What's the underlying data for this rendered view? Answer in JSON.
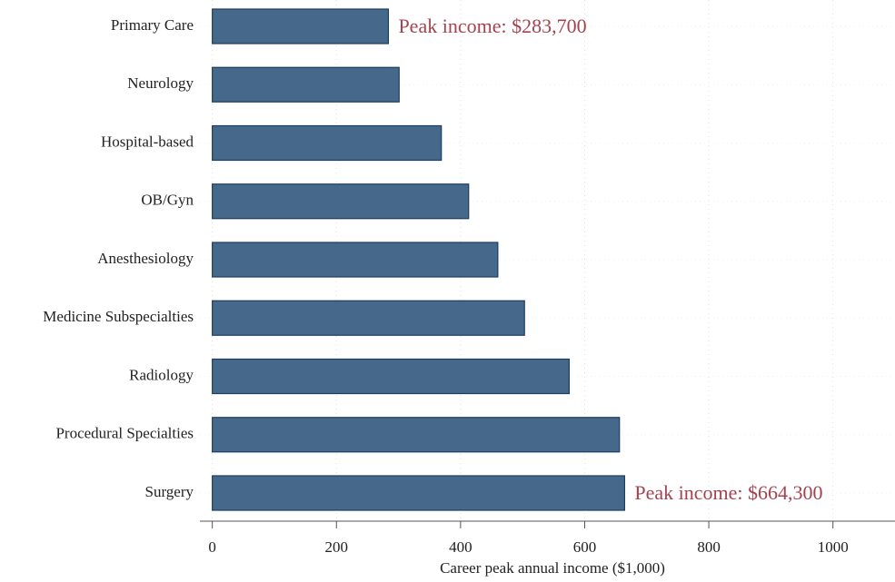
{
  "chart_data": {
    "type": "barh",
    "categories": [
      "Primary Care",
      "Neurology",
      "Hospital-based",
      "OB/Gyn",
      "Anesthesiology",
      "Medicine Subspecialties",
      "Radiology",
      "Procedural Specialties",
      "Surgery"
    ],
    "values": [
      283.7,
      301,
      369,
      413,
      460,
      503,
      575,
      656,
      664.3
    ],
    "value_labels": [
      "Peak income: $283,700",
      null,
      null,
      null,
      null,
      null,
      null,
      null,
      "Peak income: $664,300"
    ],
    "color": "#46698b",
    "x_label": "Career peak annual income ($1,000)",
    "xlim": [
      -20,
      1100
    ],
    "xticks": [
      0,
      200,
      400,
      600,
      800,
      1000
    ],
    "grid": true
  }
}
